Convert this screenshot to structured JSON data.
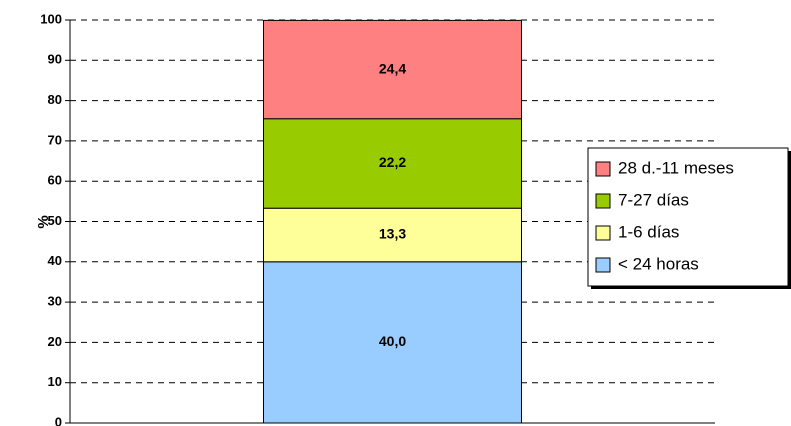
{
  "chart_data": {
    "type": "stacked-bar",
    "y_label": "%",
    "categories": [
      null
    ],
    "series": [
      {
        "name": "< 24 horas",
        "color": "#99ccff",
        "values": [
          40.0
        ],
        "value_labels": [
          "40,0"
        ]
      },
      {
        "name": "1-6 días",
        "color": "#ffff99",
        "values": [
          13.3
        ],
        "value_labels": [
          "13,3"
        ]
      },
      {
        "name": "7-27 días",
        "color": "#99cc00",
        "values": [
          22.2
        ],
        "value_labels": [
          "22,2"
        ]
      },
      {
        "name": "28 d.-11 meses",
        "color": "#ff8080",
        "values": [
          24.4
        ],
        "value_labels": [
          "24,4"
        ]
      }
    ],
    "ylim": [
      0,
      100
    ],
    "yticks": [
      0,
      10,
      20,
      30,
      40,
      50,
      60,
      70,
      80,
      90,
      100
    ],
    "grid": true,
    "legend": "right"
  }
}
